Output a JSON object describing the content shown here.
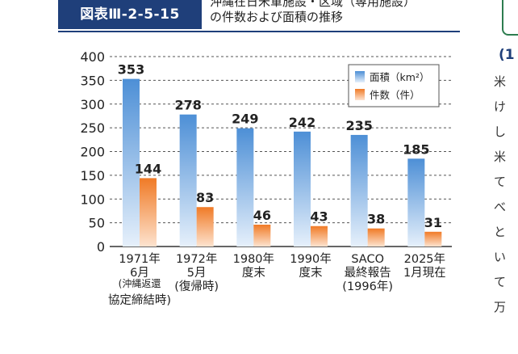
{
  "figure": {
    "label": "図表Ⅲ-2-5-15",
    "title_lines": [
      "沖縄在日米軍施設・区域（専用施設）",
      "の件数および面積の推移"
    ]
  },
  "side_text": {
    "heading": "(1",
    "lines": [
      "米",
      "け",
      "し",
      "米",
      "て",
      "べ",
      "と",
      "い",
      "て",
      "万"
    ]
  },
  "colors": {
    "header_bg": "#1f3f7a",
    "area_bar_top": "#4d8fd6",
    "area_bar_bottom": "#e6f0fb",
    "count_bar_top": "#f07a26",
    "count_bar_bottom": "#fde3cf",
    "side_box": "#2d7d4f"
  },
  "chart_data": {
    "type": "bar",
    "categories": [
      [
        "1971年",
        "6月",
        "(沖縄返還",
        "協定締結時)"
      ],
      [
        "1972年",
        "5月",
        "(復帰時)"
      ],
      [
        "1980年",
        "度末"
      ],
      [
        "1990年",
        "度末"
      ],
      [
        "SACO",
        "最終報告",
        "(1996年)"
      ],
      [
        "2025年",
        "1月現在"
      ]
    ],
    "series": [
      {
        "name": "面積（km²）",
        "values": [
          353,
          278,
          249,
          242,
          235,
          185
        ]
      },
      {
        "name": "件数（件）",
        "values": [
          144,
          83,
          46,
          43,
          38,
          31
        ]
      }
    ],
    "data_labels": [
      [
        "353",
        "278",
        "249",
        "242",
        "235",
        "185"
      ],
      [
        "144",
        "83",
        "46",
        "43",
        "38",
        "31"
      ]
    ],
    "ylim": [
      0,
      400
    ],
    "yticks": [
      "0",
      "50",
      "100",
      "150",
      "200",
      "250",
      "300",
      "350",
      "400"
    ],
    "grid": "dashed-horizontal",
    "legend_placement": "top-right"
  }
}
